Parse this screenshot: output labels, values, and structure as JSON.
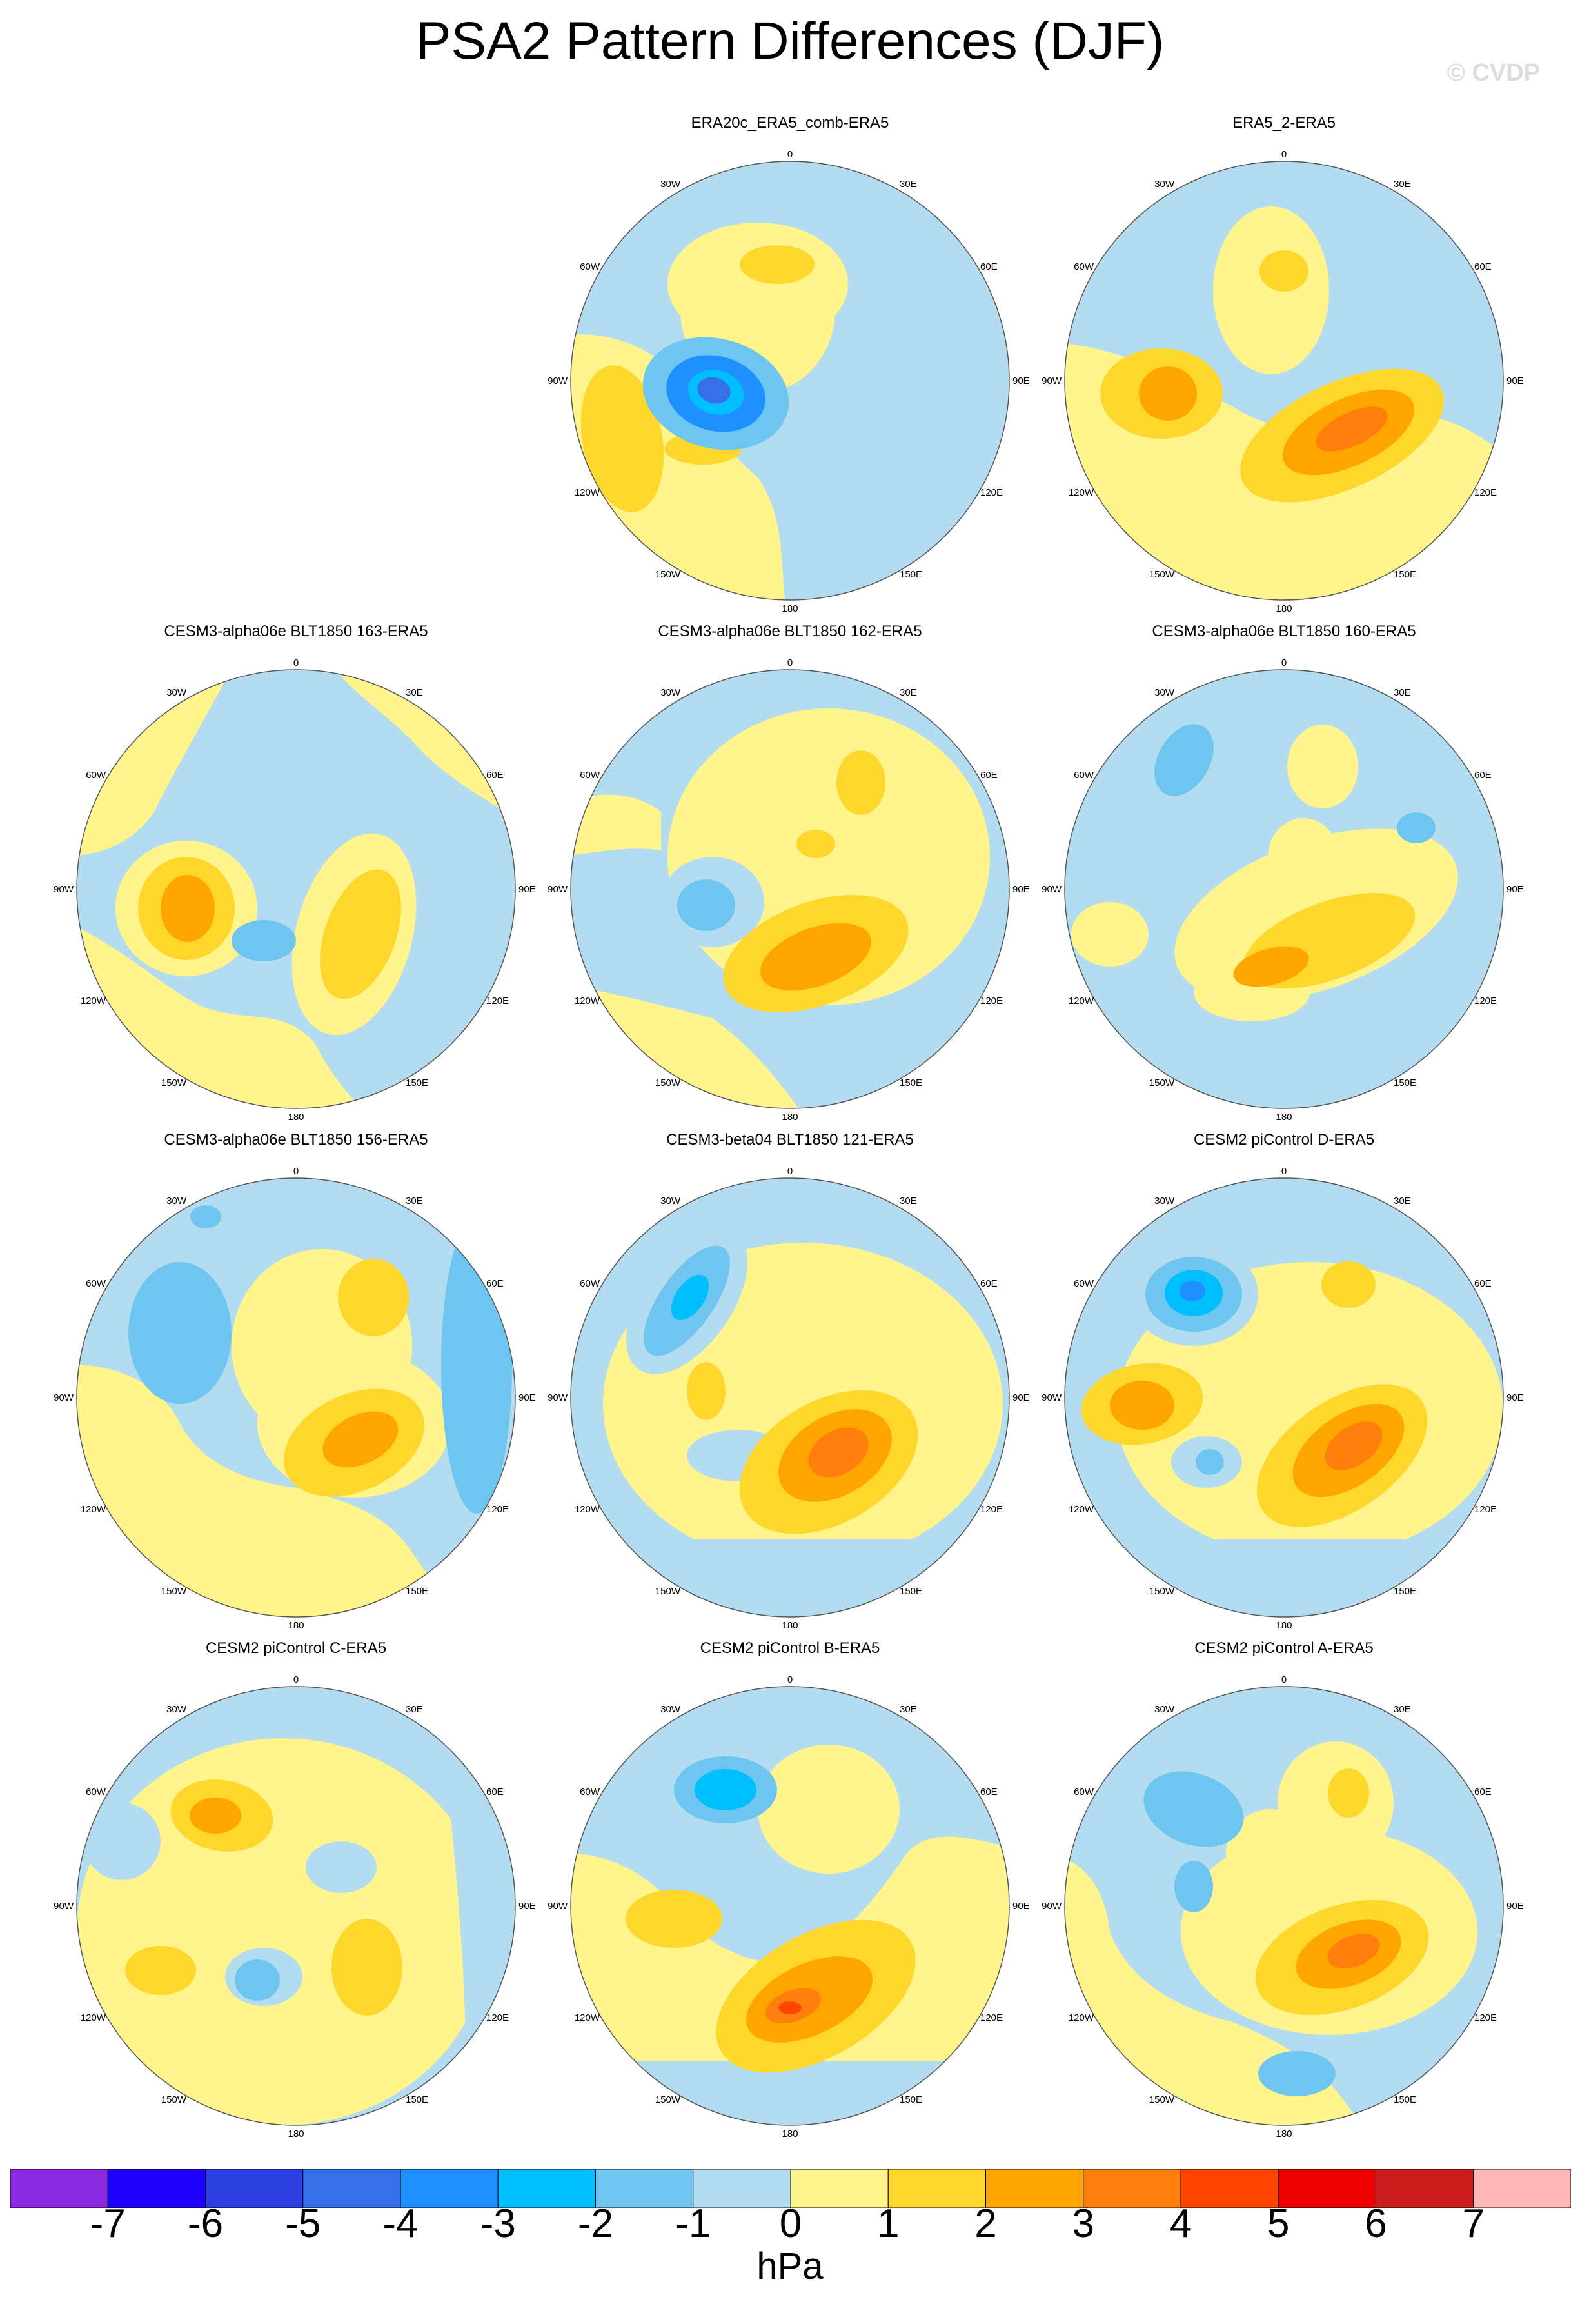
{
  "title": "PSA2 Pattern Differences (DJF)",
  "credit": "© CVDP",
  "lon_labels": {
    "0": "0",
    "30E": "30E",
    "60E": "60E",
    "90E": "90E",
    "120E": "120E",
    "150E": "150E",
    "180": "180",
    "150W": "150W",
    "120W": "120W",
    "90W": "90W",
    "60W": "60W",
    "30W": "30W"
  },
  "panels": [
    {
      "title": "ERA20c_ERA5_comb-ERA5"
    },
    {
      "title": "ERA5_2-ERA5"
    },
    {
      "title": "CESM3-alpha06e BLT1850 163-ERA5"
    },
    {
      "title": "CESM3-alpha06e BLT1850 162-ERA5"
    },
    {
      "title": "CESM3-alpha06e BLT1850 160-ERA5"
    },
    {
      "title": "CESM3-alpha06e BLT1850 156-ERA5"
    },
    {
      "title": "CESM3-beta04 BLT1850 121-ERA5"
    },
    {
      "title": "CESM2 piControl D-ERA5"
    },
    {
      "title": "CESM2 piControl C-ERA5"
    },
    {
      "title": "CESM2 piControl B-ERA5"
    },
    {
      "title": "CESM2 piControl A-ERA5"
    }
  ],
  "colorbar": {
    "units": "hPa",
    "tick_labels": [
      "-7",
      "-6",
      "-5",
      "-4",
      "-3",
      "-2",
      "-1",
      "0",
      "1",
      "2",
      "3",
      "4",
      "5",
      "6",
      "7"
    ],
    "colors": [
      "#8a2be2",
      "#1e00ff",
      "#2c3fe0",
      "#3670e8",
      "#1e90ff",
      "#00bfff",
      "#6ec6f0",
      "#b4dcf0",
      "#fff58c",
      "#ffd72c",
      "#ffa500",
      "#ff7f0e",
      "#ff4500",
      "#ee0000",
      "#cd1c1c",
      "#ffb6b6"
    ]
  }
}
